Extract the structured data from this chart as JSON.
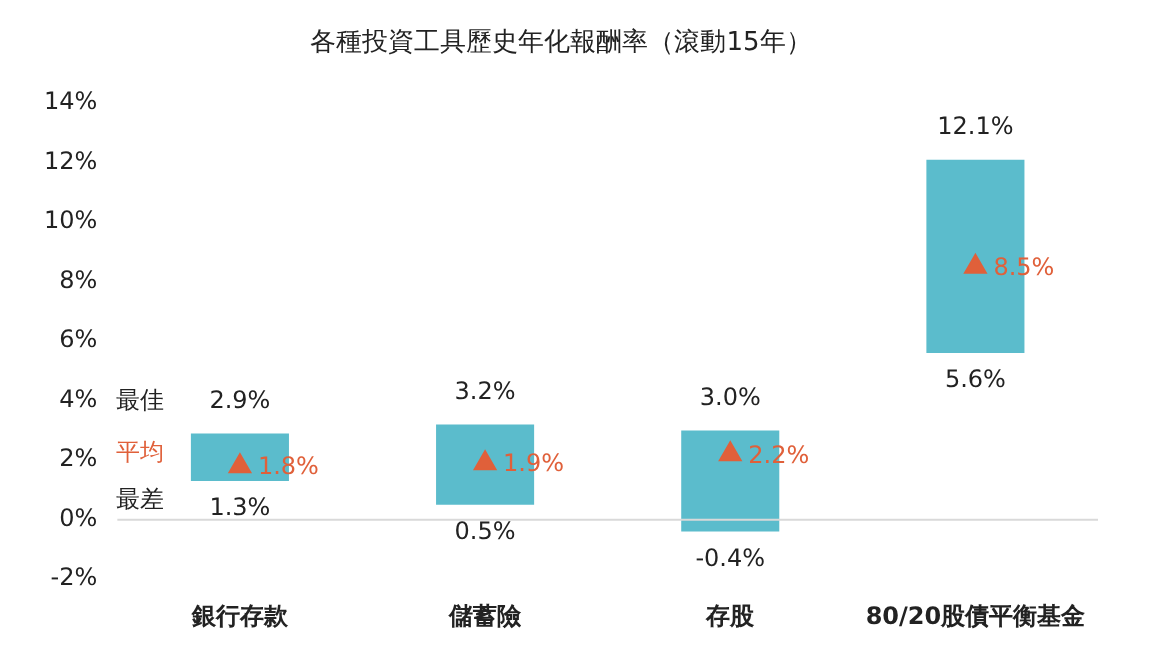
{
  "chart_data": {
    "type": "bar",
    "title": "各種投資工具歷史年化報酬率（滾動15年）",
    "categories": [
      "銀行存款",
      "儲蓄險",
      "存股",
      "80/20股債平衡基金"
    ],
    "series": [
      {
        "color": "#5bbccc",
        "base": [
          1.3,
          0.5,
          -0.4,
          5.6
        ],
        "values": [
          1.6,
          2.7,
          3.4,
          6.5
        ]
      },
      {
        "type": "scatter",
        "color": "#e0603a",
        "marker": "triangle",
        "x": [
          "銀行存款",
          "儲蓄險",
          "存股",
          "80/20股債平衡基金"
        ],
        "values": [
          1.8,
          1.9,
          2.2,
          8.5
        ],
        "value_labels": [
          "1.8%",
          "1.9%",
          "2.2%",
          "8.5%"
        ]
      }
    ],
    "ylim": [
      -2,
      14
    ],
    "yticks": [
      {
        "value": -2,
        "label": "-2%"
      },
      {
        "value": 0,
        "label": "0%"
      },
      {
        "value": 2,
        "label": "2%"
      },
      {
        "value": 4,
        "label": "4%"
      },
      {
        "value": 6,
        "label": "6%"
      },
      {
        "value": 8,
        "label": "8%"
      },
      {
        "value": 10,
        "label": "10%"
      },
      {
        "value": 12,
        "label": "12%"
      },
      {
        "value": 14,
        "label": "14%"
      }
    ],
    "grid": false,
    "legend": false,
    "ref_lines": [
      {
        "axis": "y",
        "value": 0,
        "color": "#d9d9d9"
      }
    ],
    "annotations": [
      "最佳",
      "平均",
      "最差",
      {
        "text": "2.9%",
        "x": "銀行存款",
        "y": 2.9
      },
      {
        "text": "1.3%",
        "x": "銀行存款",
        "y": 1.3
      },
      {
        "text": "3.2%",
        "x": "儲蓄險",
        "y": 3.2
      },
      {
        "text": "0.5%",
        "x": "儲蓄險",
        "y": 0.5
      },
      {
        "text": "3.0%",
        "x": "存股",
        "y": 3.0
      },
      {
        "text": "-0.4%",
        "x": "存股",
        "y": -0.4
      },
      {
        "text": "12.1%",
        "x": "80/20股債平衡基金",
        "y": 12.1
      },
      {
        "text": "5.6%",
        "x": "80/20股債平衡基金",
        "y": 5.6
      }
    ]
  }
}
